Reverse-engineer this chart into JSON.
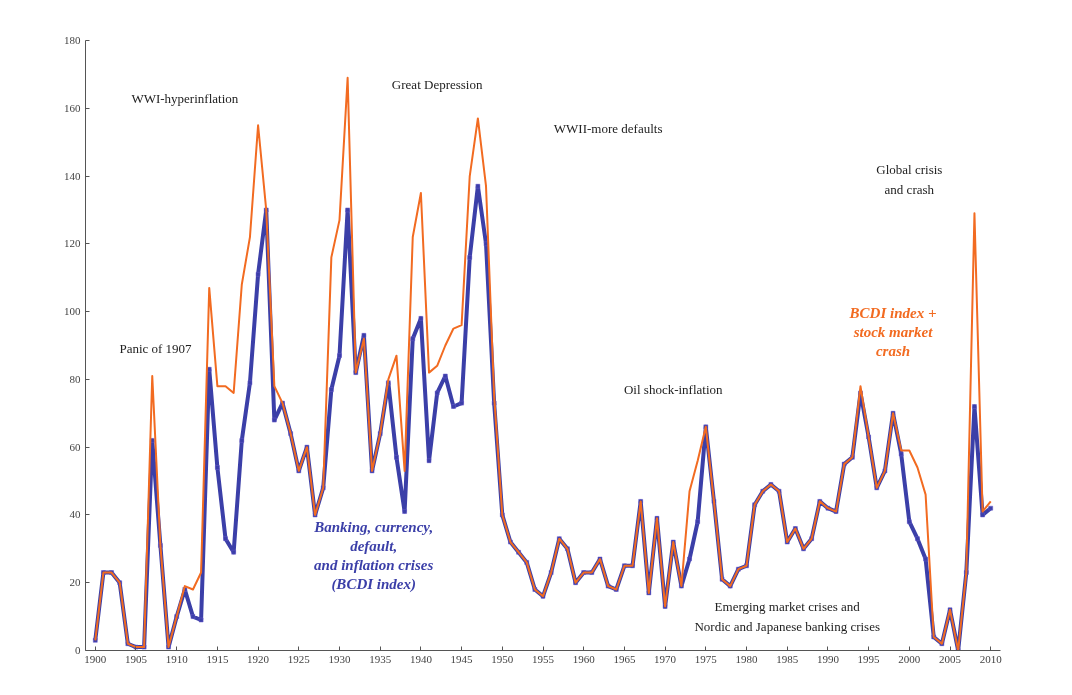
{
  "chart_data": {
    "type": "line",
    "x": [
      1900,
      1901,
      1902,
      1903,
      1904,
      1905,
      1906,
      1907,
      1908,
      1909,
      1910,
      1911,
      1912,
      1913,
      1914,
      1915,
      1916,
      1917,
      1918,
      1919,
      1920,
      1921,
      1922,
      1923,
      1924,
      1925,
      1926,
      1927,
      1928,
      1929,
      1930,
      1931,
      1932,
      1933,
      1934,
      1935,
      1936,
      1937,
      1938,
      1939,
      1940,
      1941,
      1942,
      1943,
      1944,
      1945,
      1946,
      1947,
      1948,
      1949,
      1950,
      1951,
      1952,
      1953,
      1954,
      1955,
      1956,
      1957,
      1958,
      1959,
      1960,
      1961,
      1962,
      1963,
      1964,
      1965,
      1966,
      1967,
      1968,
      1969,
      1970,
      1971,
      1972,
      1973,
      1974,
      1975,
      1976,
      1977,
      1978,
      1979,
      1980,
      1981,
      1982,
      1983,
      1984,
      1985,
      1986,
      1987,
      1988,
      1989,
      1990,
      1991,
      1992,
      1993,
      1994,
      1995,
      1996,
      1997,
      1998,
      1999,
      2000,
      2001,
      2002,
      2003,
      2004,
      2005,
      2006,
      2007,
      2008,
      2009,
      2010
    ],
    "series": [
      {
        "name": "BCDI index +\nstock market\ncrash",
        "color": "#f26b21",
        "marker": "none",
        "values": [
          3,
          23,
          23,
          20,
          2,
          1,
          1,
          81,
          31,
          1,
          10,
          19,
          18,
          23,
          107,
          78,
          78,
          76,
          108,
          122,
          155,
          130,
          78,
          73,
          64,
          53,
          60,
          40,
          48,
          116,
          127,
          169,
          82,
          92,
          53,
          64,
          80,
          87,
          53,
          122,
          135,
          82,
          84,
          90,
          95,
          96,
          140,
          157,
          137,
          75,
          40,
          32,
          29,
          26,
          18,
          16,
          23,
          33,
          30,
          20,
          23,
          23,
          27,
          19,
          18,
          25,
          25,
          44,
          17,
          39,
          13,
          32,
          19,
          47,
          56,
          66,
          44,
          21,
          19,
          24,
          25,
          43,
          47,
          49,
          47,
          32,
          36,
          30,
          33,
          44,
          42,
          41,
          55,
          57,
          78,
          63,
          48,
          53,
          70,
          59,
          59,
          54,
          46,
          4,
          2,
          12,
          0,
          23,
          129,
          41,
          44
        ]
      },
      {
        "name": "Banking, currency,\ndefault,\nand inflation crises\n(BCDI index)",
        "color": "#3b3fa8",
        "marker": "square",
        "values": [
          3,
          23,
          23,
          20,
          2,
          1,
          1,
          62,
          31,
          1,
          10,
          18,
          10,
          9,
          83,
          54,
          33,
          29,
          62,
          79,
          111,
          130,
          68,
          73,
          64,
          53,
          60,
          40,
          48,
          77,
          87,
          130,
          82,
          93,
          53,
          64,
          79,
          57,
          41,
          92,
          98,
          56,
          76,
          81,
          72,
          73,
          116,
          137,
          120,
          73,
          40,
          32,
          29,
          26,
          18,
          16,
          23,
          33,
          30,
          20,
          23,
          23,
          27,
          19,
          18,
          25,
          25,
          44,
          17,
          39,
          13,
          32,
          19,
          27,
          38,
          66,
          44,
          21,
          19,
          24,
          25,
          43,
          47,
          49,
          47,
          32,
          36,
          30,
          33,
          44,
          42,
          41,
          55,
          57,
          76,
          63,
          48,
          53,
          70,
          58,
          38,
          33,
          27,
          4,
          2,
          12,
          0,
          23,
          72,
          40,
          42
        ]
      }
    ],
    "xlim": [
      1898.8,
      2011.2
    ],
    "ylim": [
      0,
      180
    ],
    "xticks": [
      1900,
      1905,
      1910,
      1915,
      1920,
      1925,
      1930,
      1935,
      1940,
      1945,
      1950,
      1955,
      1960,
      1965,
      1970,
      1975,
      1980,
      1985,
      1990,
      1995,
      2000,
      2005,
      2010
    ],
    "yticks": [
      0,
      20,
      40,
      60,
      80,
      100,
      120,
      140,
      160,
      180
    ],
    "grid": false,
    "legend": false,
    "line_style": "solid",
    "annotations": [
      "WWI-hyperinflation",
      "Great Depression",
      "WWII-more defaults",
      "Panic of 1907",
      "Oil shock-inflation",
      "Global crisis\nand crash",
      "Emerging market crises and\nNordic and Japanese banking crises"
    ]
  }
}
